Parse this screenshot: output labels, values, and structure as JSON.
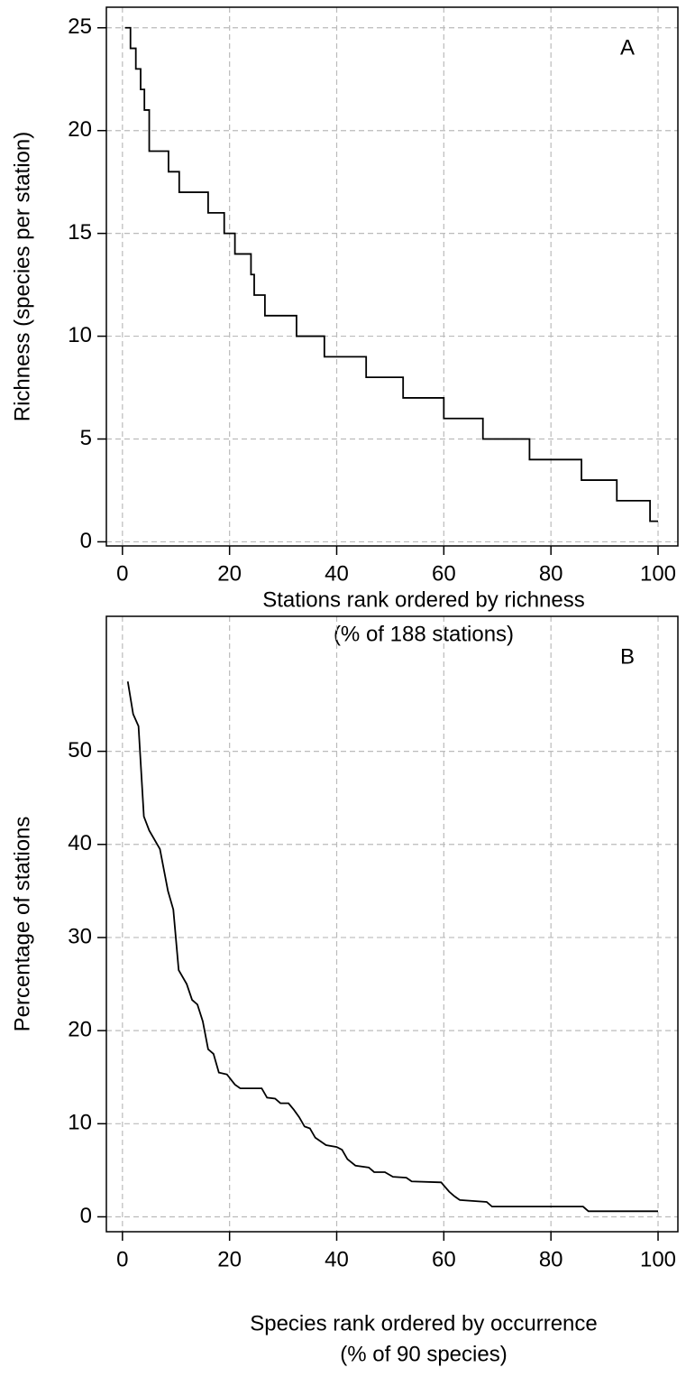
{
  "chart_data": [
    {
      "type": "line",
      "step": "post",
      "annotation": "A",
      "xlabel": "Stations rank ordered by richness",
      "xlabel2": "(% of 188 stations)",
      "ylabel": "Richness (species per station)",
      "x": [
        0.5,
        1.5,
        2.5,
        3.4,
        4.1,
        5,
        8.6,
        10.6,
        16,
        19,
        21,
        24,
        24.6,
        26.6,
        32.5,
        37.7,
        45.5,
        52.4,
        60,
        67.3,
        76,
        85.7,
        92.3,
        98.5,
        100
      ],
      "series": [
        {
          "color": "#000000",
          "values": [
            25,
            24,
            23,
            22,
            21,
            19,
            18,
            17,
            16,
            15,
            14,
            13,
            12,
            11,
            10,
            9,
            8,
            7,
            6,
            5,
            4,
            3,
            2,
            1,
            1
          ]
        }
      ],
      "xlim": [
        -3,
        103.7
      ],
      "xticks": [
        0,
        20,
        40,
        60,
        80,
        100
      ],
      "ylim": [
        -0.2,
        26
      ],
      "yticks": [
        0,
        5,
        10,
        15,
        20,
        25
      ],
      "grid": true
    },
    {
      "type": "line",
      "annotation": "B",
      "xlabel": "Species rank ordered by occurrence",
      "xlabel2": "(% of 90 species)",
      "ylabel": "Percentage of stations",
      "x": [
        1,
        2,
        3,
        4,
        5,
        7,
        8.5,
        9.5,
        10.5,
        12,
        13,
        14,
        15,
        16,
        17,
        18,
        19.5,
        21,
        22,
        26,
        27,
        28.5,
        29.5,
        31,
        32,
        33,
        34,
        35,
        36,
        38,
        40,
        41,
        42,
        43.5,
        46,
        47,
        49,
        50.5,
        53,
        54,
        59.5,
        61,
        62,
        63,
        68,
        69,
        86,
        87,
        100
      ],
      "series": [
        {
          "color": "#000000",
          "values": [
            57.5,
            54,
            52.7,
            43,
            41.5,
            39.5,
            35,
            33,
            26.5,
            25,
            23.3,
            22.8,
            21,
            18,
            17.5,
            15.5,
            15.3,
            14.2,
            13.8,
            13.8,
            12.8,
            12.7,
            12.2,
            12.2,
            11.5,
            10.7,
            9.7,
            9.5,
            8.5,
            7.7,
            7.5,
            7.2,
            6.2,
            5.5,
            5.3,
            4.8,
            4.8,
            4.3,
            4.2,
            3.8,
            3.7,
            2.7,
            2.2,
            1.8,
            1.6,
            1.1,
            1.1,
            0.6,
            0.6
          ]
        }
      ],
      "xlim": [
        -3,
        103.7
      ],
      "xticks": [
        0,
        20,
        40,
        60,
        80,
        100
      ],
      "ylim": [
        -1.6,
        64.5
      ],
      "yticks": [
        0,
        10,
        20,
        30,
        40,
        50
      ],
      "grid": true
    }
  ]
}
